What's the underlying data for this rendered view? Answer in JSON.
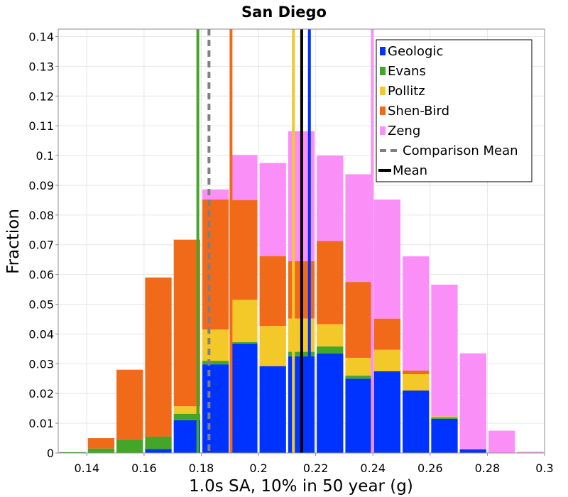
{
  "chart_data": {
    "type": "bar",
    "stacked": true,
    "title": "San Diego",
    "xlabel": "1.0s SA, 10% in 50 year (g)",
    "ylabel": "Fraction",
    "xlim": [
      0.13,
      0.3
    ],
    "ylim": [
      0,
      0.1425
    ],
    "grid": true,
    "legend_position": "top-right",
    "bin_width": 0.01,
    "x_ticks": [
      0.14,
      0.16,
      0.18,
      0.2,
      0.22,
      0.24,
      0.26,
      0.28,
      0.3
    ],
    "x_tick_labels": [
      "0.14",
      "0.16",
      "0.18",
      "0.2",
      "0.22",
      "0.24",
      "0.26",
      "0.28",
      "0.3"
    ],
    "y_ticks": [
      0,
      0.01,
      0.02,
      0.03,
      0.04,
      0.05,
      0.06,
      0.07,
      0.08,
      0.09,
      0.1,
      0.11,
      0.12,
      0.13,
      0.14
    ],
    "y_tick_labels": [
      "0",
      "0.01",
      "0.02",
      "0.03",
      "0.04",
      "0.05",
      "0.06",
      "0.07",
      "0.08",
      "0.09",
      "0.1",
      "0.11",
      "0.12",
      "0.13",
      "0.14"
    ],
    "bin_starts": [
      0.13,
      0.14,
      0.15,
      0.16,
      0.17,
      0.18,
      0.19,
      0.2,
      0.21,
      0.22,
      0.23,
      0.24,
      0.25,
      0.26,
      0.27,
      0.28,
      0.29
    ],
    "series": [
      {
        "name": "Geologic",
        "color": "#0033ff",
        "values": [
          0,
          0,
          0,
          0.0013,
          0.011,
          0.0298,
          0.0368,
          0.0292,
          0.0325,
          0.0335,
          0.025,
          0.0275,
          0.021,
          0.0115,
          0.0012,
          0,
          0
        ]
      },
      {
        "name": "Evans",
        "color": "#44a628",
        "values": [
          0.0003,
          0.0015,
          0.0045,
          0.0042,
          0.0022,
          0.0012,
          0.0005,
          0,
          0.0015,
          0.0023,
          0.001,
          0,
          0,
          0.0005,
          0,
          0,
          0
        ]
      },
      {
        "name": "Pollitz",
        "color": "#f2c928",
        "values": [
          0,
          0,
          0,
          0,
          0.0025,
          0.0105,
          0.0142,
          0.0135,
          0.0112,
          0.0075,
          0.006,
          0.0072,
          0.0055,
          0.0003,
          0,
          0,
          0
        ]
      },
      {
        "name": "Shen-Bird",
        "color": "#f06a1a",
        "values": [
          0,
          0.0035,
          0.0235,
          0.0535,
          0.056,
          0.0437,
          0.0335,
          0.0235,
          0.0193,
          0.028,
          0.0255,
          0.0105,
          0.0012,
          0,
          0,
          0,
          0
        ]
      },
      {
        "name": "Zeng",
        "color": "#fa8ff8",
        "values": [
          0,
          0,
          0,
          0,
          0,
          0.0034,
          0.0152,
          0.0313,
          0.0437,
          0.0287,
          0.0362,
          0.04,
          0.0384,
          0.0443,
          0.0323,
          0.0075,
          0.0004
        ]
      }
    ],
    "vertical_lines": [
      {
        "name": "Geologic",
        "x": 0.2178,
        "color": "#0033ff",
        "dash": false
      },
      {
        "name": "Evans",
        "x": 0.1788,
        "color": "#44a628",
        "dash": false
      },
      {
        "name": "Pollitz",
        "x": 0.2122,
        "color": "#f2c928",
        "dash": false
      },
      {
        "name": "Shen-Bird",
        "x": 0.1904,
        "color": "#f06a1a",
        "dash": false
      },
      {
        "name": "Zeng",
        "x": 0.2398,
        "color": "#fa8ff8",
        "dash": false
      },
      {
        "name": "Comparison Mean",
        "x": 0.1827,
        "color": "#808080",
        "dash": true
      },
      {
        "name": "Mean",
        "x": 0.2151,
        "color": "#000000",
        "dash": false
      }
    ],
    "legend": [
      {
        "label": "Geologic",
        "color": "#0033ff",
        "kind": "box"
      },
      {
        "label": "Evans",
        "color": "#44a628",
        "kind": "box"
      },
      {
        "label": "Pollitz",
        "color": "#f2c928",
        "kind": "box"
      },
      {
        "label": "Shen-Bird",
        "color": "#f06a1a",
        "kind": "box"
      },
      {
        "label": "Zeng",
        "color": "#fa8ff8",
        "kind": "box"
      },
      {
        "label": "Comparison Mean",
        "color": "#808080",
        "kind": "dash"
      },
      {
        "label": "Mean",
        "color": "#000000",
        "kind": "line"
      }
    ]
  }
}
